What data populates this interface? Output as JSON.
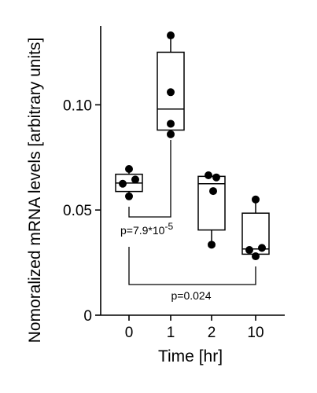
{
  "chart_data": {
    "type": "box",
    "xlabel": "Time [hr]",
    "ylabel": "Nomoralized mRNA levels  [arbitrary units]",
    "ylim": [
      0,
      0.1375
    ],
    "yticks": [
      {
        "value": 0,
        "label": "0"
      },
      {
        "value": 0.05,
        "label": "0.05"
      },
      {
        "value": 0.1,
        "label": "0.10"
      }
    ],
    "categories": [
      "0",
      "1",
      "2",
      "10"
    ],
    "boxes": [
      {
        "category": "0",
        "whisker_low": 0.0565,
        "q1": 0.0588,
        "median": 0.0628,
        "q3": 0.067,
        "whisker_high": 0.0695,
        "points": [
          0.0695,
          0.0645,
          0.0625,
          0.0565
        ]
      },
      {
        "category": "1",
        "whisker_low": 0.0855,
        "q1": 0.088,
        "median": 0.098,
        "q3": 0.125,
        "whisker_high": 0.133,
        "points": [
          0.133,
          0.106,
          0.091,
          0.086
        ]
      },
      {
        "category": "2",
        "whisker_low": 0.0335,
        "q1": 0.0405,
        "median": 0.0625,
        "q3": 0.066,
        "whisker_high": 0.0665,
        "points": [
          0.0665,
          0.0655,
          0.059,
          0.0335
        ]
      },
      {
        "category": "10",
        "whisker_low": 0.0275,
        "q1": 0.029,
        "median": 0.0315,
        "q3": 0.0485,
        "whisker_high": 0.055,
        "points": [
          0.055,
          0.032,
          0.031,
          0.028
        ]
      }
    ],
    "annotations": [
      {
        "type": "bracket",
        "from": "0",
        "to": "1",
        "text": "p=7.9*10",
        "superscript": "-5"
      },
      {
        "type": "bracket",
        "from": "0",
        "to": "10",
        "text": "p=0.024",
        "superscript": ""
      }
    ]
  }
}
